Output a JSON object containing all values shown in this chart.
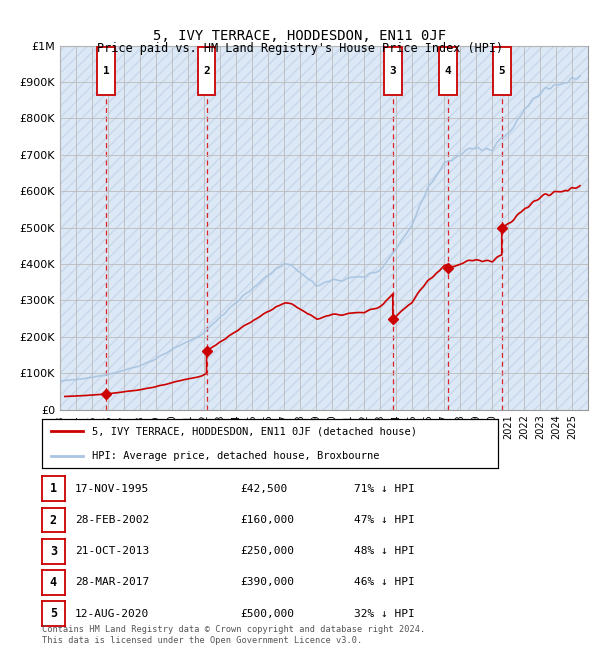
{
  "title": "5, IVY TERRACE, HODDESDON, EN11 0JF",
  "subtitle": "Price paid vs. HM Land Registry's House Price Index (HPI)",
  "footer": "Contains HM Land Registry data © Crown copyright and database right 2024.\nThis data is licensed under the Open Government Licence v3.0.",
  "legend_line1": "5, IVY TERRACE, HODDESDON, EN11 0JF (detached house)",
  "legend_line2": "HPI: Average price, detached house, Broxbourne",
  "transactions": [
    {
      "num": 1,
      "date": "17-NOV-1995",
      "price": 42500,
      "hpi_pct": "71% ↓ HPI",
      "year": 1995.88
    },
    {
      "num": 2,
      "date": "28-FEB-2002",
      "price": 160000,
      "hpi_pct": "47% ↓ HPI",
      "year": 2002.16
    },
    {
      "num": 3,
      "date": "21-OCT-2013",
      "price": 250000,
      "hpi_pct": "48% ↓ HPI",
      "year": 2013.8
    },
    {
      "num": 4,
      "date": "28-MAR-2017",
      "price": 390000,
      "hpi_pct": "46% ↓ HPI",
      "year": 2017.24
    },
    {
      "num": 5,
      "date": "12-AUG-2020",
      "price": 500000,
      "hpi_pct": "32% ↓ HPI",
      "year": 2020.61
    }
  ],
  "hpi_color": "#a8c4e0",
  "price_color": "#cc0000",
  "vline_color": "#dd0000",
  "box_color": "#cc0000",
  "ylim": [
    0,
    1000000
  ],
  "xlim": [
    1993,
    2026
  ],
  "yticks": [
    0,
    100000,
    200000,
    300000,
    400000,
    500000,
    600000,
    700000,
    800000,
    900000,
    1000000
  ],
  "ytick_labels": [
    "£0",
    "£100K",
    "£200K",
    "£300K",
    "£400K",
    "£500K",
    "£600K",
    "£700K",
    "£800K",
    "£900K",
    "£1M"
  ],
  "xticks": [
    1993,
    1994,
    1995,
    1996,
    1997,
    1998,
    1999,
    2000,
    2001,
    2002,
    2003,
    2004,
    2005,
    2006,
    2007,
    2008,
    2009,
    2010,
    2011,
    2012,
    2013,
    2014,
    2015,
    2016,
    2017,
    2018,
    2019,
    2020,
    2021,
    2022,
    2023,
    2024,
    2025
  ],
  "background_color": "#dce8f5",
  "hatch_color": "#c8d8ec",
  "grid_color": "#bbbbbb"
}
